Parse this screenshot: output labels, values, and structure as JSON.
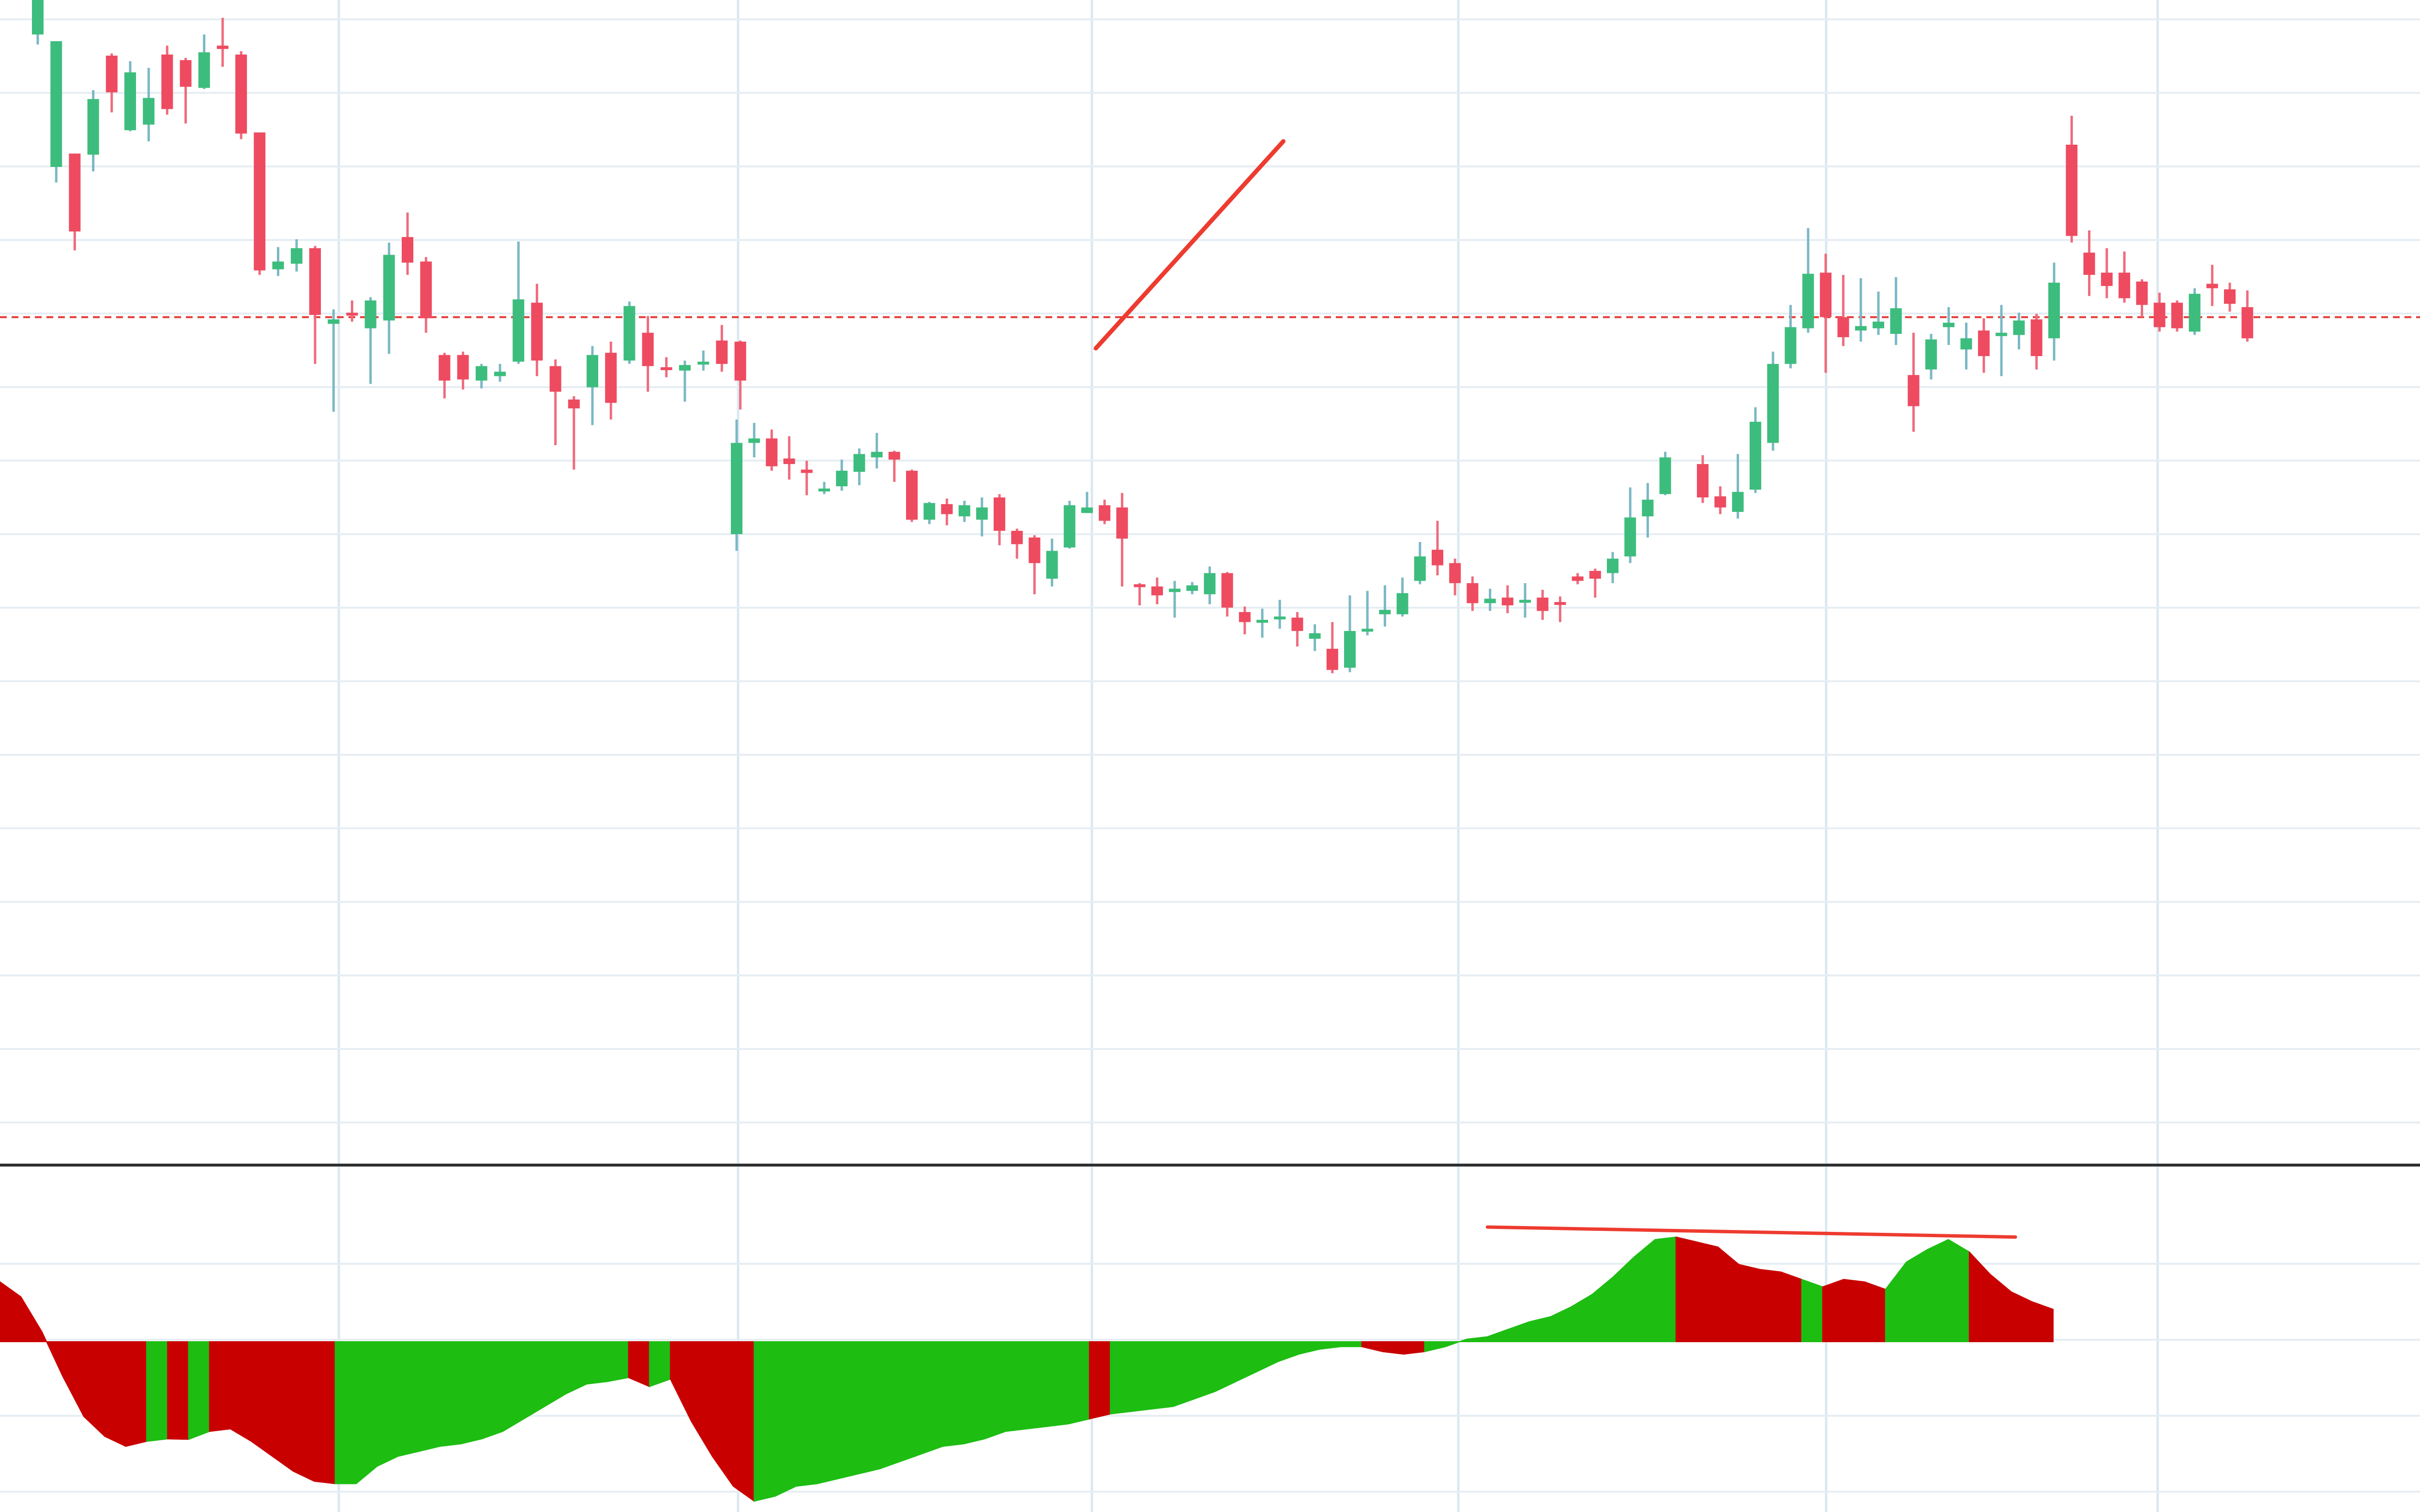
{
  "chart_data": [
    {
      "type": "candlestick",
      "panel": "price",
      "x_index_range": [
        0,
        92
      ],
      "y_range": [
        0,
        100
      ],
      "grid": true,
      "reference_line": {
        "style": "dashed",
        "color": "#e53935",
        "value": 71.5
      },
      "colors": {
        "up": "#3dbd7d",
        "down": "#ee4b60",
        "wick_up": "#7ab8c4",
        "wick_down": "#ee6c7e"
      },
      "trendline": {
        "color": "#ee3b30",
        "points": [
          [
            59.5,
            68.7
          ],
          [
            70.2,
            87.3
          ]
        ]
      },
      "candles": [
        [
          0,
          96.9,
          100.5,
          96.0,
          100.5
        ],
        [
          1,
          85.0,
          96.3,
          83.6,
          96.3
        ],
        [
          2,
          86.2,
          79.2,
          77.5,
          86.2
        ],
        [
          3,
          86.1,
          91.1,
          84.6,
          91.9
        ],
        [
          4,
          95.0,
          91.7,
          89.9,
          95.2
        ],
        [
          5,
          88.3,
          93.5,
          88.2,
          94.5
        ],
        [
          6,
          88.8,
          91.2,
          87.3,
          93.9
        ],
        [
          7,
          95.1,
          90.2,
          89.7,
          95.9
        ],
        [
          8,
          94.6,
          92.2,
          88.9,
          94.8
        ],
        [
          9,
          92.1,
          95.3,
          92.0,
          96.9
        ],
        [
          10,
          95.9,
          95.6,
          94.0,
          98.4
        ],
        [
          11,
          95.1,
          88.0,
          87.5,
          95.4
        ],
        [
          12,
          88.1,
          75.7,
          75.3,
          88.1
        ],
        [
          13,
          75.8,
          76.5,
          75.2,
          77.8
        ],
        [
          14,
          76.3,
          77.7,
          75.6,
          78.5
        ],
        [
          15,
          77.7,
          71.7,
          67.3,
          77.9
        ],
        [
          16,
          70.9,
          71.3,
          63.0,
          72.2
        ],
        [
          17,
          71.9,
          71.7,
          71.1,
          73.0
        ],
        [
          18,
          70.5,
          73.0,
          65.5,
          73.3
        ],
        [
          19,
          71.2,
          77.1,
          68.2,
          78.2
        ],
        [
          20,
          78.7,
          76.4,
          75.3,
          80.9
        ],
        [
          21,
          76.5,
          71.4,
          70.1,
          76.9
        ],
        [
          22,
          68.1,
          65.8,
          64.2,
          68.3
        ],
        [
          23,
          68.1,
          65.9,
          65.0,
          68.4
        ],
        [
          24,
          65.8,
          67.1,
          65.1,
          67.3
        ],
        [
          25,
          66.2,
          66.6,
          65.7,
          67.3
        ],
        [
          26,
          67.5,
          73.1,
          67.3,
          78.3
        ],
        [
          27,
          72.8,
          67.6,
          66.2,
          74.5
        ],
        [
          28,
          67.1,
          64.8,
          60.0,
          67.7
        ],
        [
          29,
          64.1,
          63.3,
          57.8,
          64.4
        ],
        [
          30,
          65.2,
          68.1,
          61.8,
          68.9
        ],
        [
          31,
          68.3,
          63.8,
          62.3,
          69.3
        ],
        [
          32,
          67.6,
          72.5,
          67.3,
          72.9
        ],
        [
          33,
          70.1,
          67.1,
          64.8,
          71.6
        ],
        [
          34,
          67.0,
          66.8,
          66.1,
          67.9
        ],
        [
          35,
          66.7,
          67.2,
          63.9,
          67.6
        ],
        [
          36,
          67.4,
          67.5,
          66.7,
          68.5
        ],
        [
          37,
          69.4,
          67.3,
          66.6,
          70.8
        ],
        [
          38,
          69.3,
          65.8,
          63.2,
          69.4
        ],
        [
          39,
          52.0,
          60.2,
          50.5,
          62.3
        ],
        [
          40,
          60.2,
          60.6,
          58.9,
          62.0
        ],
        [
          41,
          60.6,
          58.1,
          57.7,
          61.4
        ],
        [
          42,
          58.8,
          58.3,
          56.9,
          60.8
        ],
        [
          43,
          57.8,
          57.5,
          55.5,
          58.6
        ],
        [
          44,
          55.9,
          56.1,
          55.6,
          56.7
        ],
        [
          45,
          56.3,
          57.7,
          55.9,
          58.7
        ],
        [
          46,
          57.6,
          59.2,
          56.4,
          59.7
        ],
        [
          47,
          58.9,
          59.4,
          57.9,
          61.1
        ],
        [
          48,
          59.4,
          58.7,
          56.7,
          59.5
        ],
        [
          49,
          57.7,
          53.3,
          53.1,
          57.8
        ],
        [
          50,
          53.3,
          54.8,
          52.9,
          54.9
        ],
        [
          51,
          54.7,
          53.8,
          52.8,
          55.2
        ],
        [
          52,
          53.6,
          54.6,
          53.1,
          55.0
        ],
        [
          53,
          53.3,
          54.4,
          51.8,
          55.3
        ],
        [
          54,
          55.3,
          52.3,
          51.0,
          55.6
        ],
        [
          55,
          52.3,
          51.1,
          49.8,
          52.5
        ],
        [
          56,
          51.7,
          49.4,
          46.6,
          51.9
        ],
        [
          57,
          48.0,
          50.5,
          47.3,
          51.6
        ],
        [
          58,
          50.8,
          54.6,
          50.7,
          55.0
        ],
        [
          59,
          53.9,
          54.4,
          53.9,
          55.8
        ],
        [
          60,
          54.6,
          53.2,
          52.9,
          55.1
        ],
        [
          61,
          54.4,
          51.6,
          47.3,
          55.7
        ],
        [
          62,
          47.5,
          47.3,
          45.6,
          47.6
        ],
        [
          63,
          47.3,
          46.5,
          45.7,
          48.1
        ],
        [
          64,
          46.8,
          47.1,
          44.5,
          47.8
        ],
        [
          65,
          46.9,
          47.4,
          46.6,
          47.7
        ],
        [
          66,
          46.6,
          48.5,
          45.7,
          49.1
        ],
        [
          67,
          48.5,
          45.4,
          44.6,
          48.6
        ],
        [
          68,
          45.0,
          44.1,
          43.0,
          45.5
        ],
        [
          69,
          44.2,
          44.3,
          42.7,
          45.3
        ],
        [
          70,
          44.4,
          44.6,
          43.5,
          46.1
        ],
        [
          71,
          44.5,
          43.3,
          41.9,
          45.0
        ],
        [
          72,
          42.6,
          43.1,
          41.5,
          43.9
        ],
        [
          73,
          41.7,
          39.8,
          39.5,
          44.1
        ],
        [
          74,
          40.0,
          43.3,
          39.6,
          46.5
        ],
        [
          75,
          43.5,
          43.5,
          42.9,
          46.9
        ],
        [
          76,
          44.8,
          45.2,
          43.7,
          47.4
        ],
        [
          77,
          44.8,
          46.7,
          44.6,
          48.1
        ],
        [
          78,
          47.8,
          50.0,
          47.5,
          51.3
        ],
        [
          79,
          50.6,
          49.2,
          48.3,
          53.2
        ],
        [
          80,
          49.4,
          47.6,
          46.5,
          49.8
        ],
        [
          81,
          47.6,
          45.8,
          45.1,
          48.2
        ],
        [
          82,
          45.8,
          46.2,
          45.1,
          47.1
        ],
        [
          83,
          46.3,
          45.6,
          44.9,
          47.4
        ],
        [
          84,
          45.9,
          46.1,
          44.5,
          47.6
        ],
        [
          85,
          46.3,
          45.1,
          44.3,
          47.0
        ],
        [
          86,
          45.9,
          45.7,
          44.1,
          46.4
        ],
        [
          87,
          48.2,
          47.8,
          47.5,
          48.5
        ],
        [
          88,
          48.7,
          48.0,
          46.3,
          48.9
        ],
        [
          89,
          48.5,
          49.8,
          47.6,
          50.4
        ],
        [
          90,
          50.0,
          53.5,
          49.4,
          56.2
        ],
        [
          91,
          53.6,
          55.1,
          51.7,
          56.6
        ],
        [
          92,
          55.6,
          58.9,
          55.5,
          59.4
        ]
      ],
      "candles_right": [
        [
          93,
          58.3,
          55.3,
          54.8,
          59.1
        ],
        [
          94,
          55.4,
          54.4,
          53.8,
          56.3
        ],
        [
          95,
          54.0,
          55.8,
          53.4,
          59.2
        ],
        [
          96,
          56.0,
          62.1,
          55.7,
          63.4
        ],
        [
          97,
          60.2,
          67.3,
          59.5,
          68.4
        ],
        [
          98,
          67.3,
          70.6,
          66.9,
          72.6
        ],
        [
          99,
          70.5,
          75.4,
          70.1,
          79.5
        ],
        [
          100,
          75.5,
          71.5,
          66.5,
          77.2
        ],
        [
          101,
          71.5,
          69.7,
          68.9,
          75.3
        ],
        [
          102,
          70.3,
          70.7,
          69.3,
          75.0
        ],
        [
          103,
          70.5,
          71.1,
          69.9,
          73.8
        ],
        [
          104,
          70.0,
          72.3,
          69.0,
          75.1
        ],
        [
          105,
          66.3,
          63.5,
          61.2,
          70.1
        ],
        [
          106,
          66.8,
          69.5,
          65.9,
          70.0
        ],
        [
          107,
          70.6,
          71.0,
          69.0,
          72.4
        ],
        [
          108,
          68.6,
          69.6,
          66.8,
          71.0
        ],
        [
          109,
          70.3,
          68.0,
          66.5,
          71.4
        ],
        [
          110,
          69.8,
          70.1,
          66.2,
          72.6
        ],
        [
          111,
          69.9,
          71.2,
          68.6,
          71.9
        ],
        [
          112,
          71.3,
          68.0,
          66.8,
          71.8
        ],
        [
          113,
          69.6,
          74.6,
          67.6,
          76.4
        ],
        [
          114,
          87.0,
          78.8,
          78.2,
          89.6
        ],
        [
          115,
          77.3,
          75.3,
          73.4,
          79.3
        ],
        [
          116,
          75.5,
          74.3,
          73.2,
          77.7
        ],
        [
          117,
          75.5,
          73.2,
          72.8,
          77.4
        ],
        [
          118,
          74.7,
          72.6,
          71.5,
          74.9
        ],
        [
          119,
          72.8,
          70.6,
          70.2,
          73.7
        ],
        [
          120,
          72.8,
          70.5,
          70.2,
          73.0
        ],
        [
          121,
          70.2,
          73.6,
          69.9,
          74.1
        ],
        [
          122,
          74.5,
          74.1,
          72.5,
          76.2
        ],
        [
          123,
          74.0,
          72.7,
          72.0,
          74.6
        ],
        [
          124,
          72.4,
          69.6,
          69.3,
          73.9
        ]
      ]
    },
    {
      "type": "area",
      "panel": "oscillator",
      "baseline": 0,
      "y_range": [
        -3.5,
        2.5
      ],
      "colors": {
        "positive_momentum": "#1dbd12",
        "negative_momentum": "#c90000"
      },
      "trendline": {
        "color": "#ee3b30",
        "points": [
          [
            97.5,
            2.3
          ],
          [
            116.0,
            2.1
          ]
        ]
      },
      "values": [
        1.2,
        0.9,
        0.2,
        -0.7,
        -1.5,
        -1.9,
        -2.1,
        -2.0,
        -1.95,
        -1.96,
        -1.8,
        -1.75,
        -2.0,
        -2.3,
        -2.6,
        -2.8,
        -2.85,
        -2.85,
        -2.5,
        -2.3,
        -2.2,
        -2.1,
        -2.05,
        -1.95,
        -1.8,
        -1.55,
        -1.3,
        -1.05,
        -0.85,
        -0.8,
        -0.72,
        -0.9,
        -0.75,
        -1.6,
        -2.3,
        -2.9,
        -3.2,
        -3.1,
        -2.9,
        -2.85,
        -2.75,
        -2.65,
        -2.55,
        -2.4,
        -2.25,
        -2.1,
        -2.05,
        -1.95,
        -1.8,
        -1.75,
        -1.7,
        -1.65,
        -1.55,
        -1.45,
        -1.4,
        -1.35,
        -1.3,
        -1.15,
        -1.0,
        -0.8,
        -0.6,
        -0.4,
        -0.25,
        -0.15,
        -0.1,
        -0.1,
        -0.2,
        -0.25,
        -0.2,
        -0.1,
        0.05,
        0.1,
        0.25,
        0.4,
        0.5,
        0.7,
        0.95,
        1.3,
        1.7,
        2.05,
        2.1,
        2.0,
        1.9,
        1.55,
        1.45,
        1.4,
        1.25,
        1.1,
        1.25,
        1.2,
        1.05,
        1.6,
        1.85,
        2.05,
        1.8,
        1.35,
        1.0,
        0.8,
        0.65
      ],
      "colors_by_segment": [
        [
          0,
          7,
          "negative_momentum"
        ],
        [
          7,
          8,
          "positive_momentum"
        ],
        [
          8,
          9,
          "negative_momentum"
        ],
        [
          9,
          10,
          "positive_momentum"
        ],
        [
          10,
          16,
          "negative_momentum"
        ],
        [
          16,
          30,
          "positive_momentum"
        ],
        [
          30,
          31,
          "negative_momentum"
        ],
        [
          31,
          32,
          "positive_momentum"
        ],
        [
          32,
          36,
          "negative_momentum"
        ],
        [
          36,
          52,
          "positive_momentum"
        ],
        [
          52,
          53,
          "negative_momentum"
        ],
        [
          53,
          65,
          "positive_momentum"
        ],
        [
          65,
          68,
          "negative_momentum"
        ],
        [
          68,
          80,
          "positive_momentum"
        ],
        [
          80,
          86,
          "negative_momentum"
        ],
        [
          86,
          87,
          "positive_momentum"
        ],
        [
          87,
          90,
          "negative_momentum"
        ],
        [
          90,
          94,
          "positive_momentum"
        ],
        [
          94,
          98,
          "negative_momentum"
        ]
      ]
    }
  ]
}
